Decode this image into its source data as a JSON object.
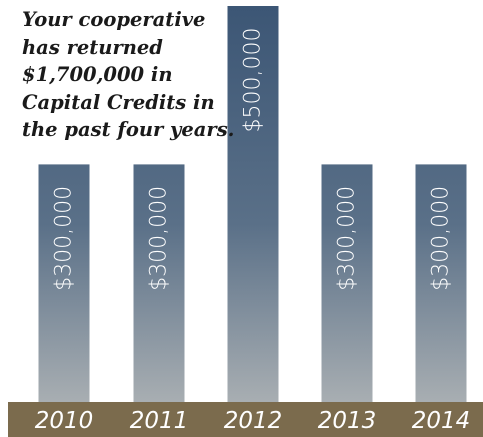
{
  "chart_data": {
    "type": "bar",
    "title_lines": [
      "Your cooperative",
      "has returned",
      "$1,700,000 in",
      "Capital Credits in",
      "the past four years."
    ],
    "categories": [
      "2010",
      "2011",
      "2012",
      "2013",
      "2014"
    ],
    "values": [
      300000,
      300000,
      500000,
      300000,
      300000
    ],
    "data_labels": [
      "$300,000",
      "$300,000",
      "$500,000",
      "$300,000",
      "$300,000"
    ],
    "ylim": [
      0,
      500000
    ],
    "grid": false,
    "legend": "none",
    "colors": {
      "bar_top": "#3c5675",
      "bar_bottom": "#a8aeb2",
      "axis_band": "#7b6b4d",
      "axis_text": "#ffffff",
      "label_text": "#ffffff"
    }
  }
}
